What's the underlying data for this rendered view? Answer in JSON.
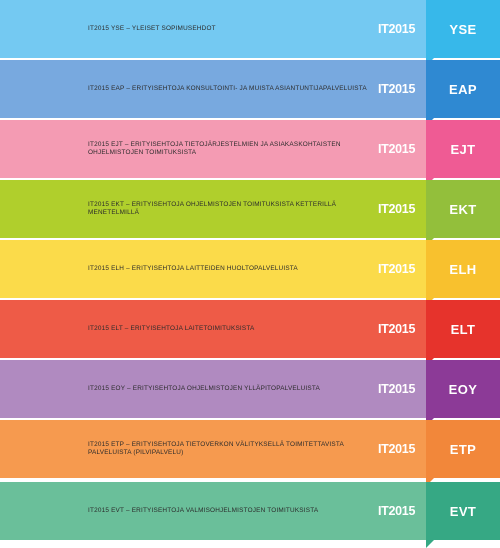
{
  "brand": "IT2015",
  "bands": [
    {
      "code": "YSE",
      "text": "IT2015 YSE – YLEISET SOPIMUSEHDOT",
      "color": "#74c9f2",
      "accent": "#37b8ea"
    },
    {
      "code": "EAP",
      "text": "IT2015 EAP – ERITYISEHTOJA KONSULTOINTI- JA MUISTA ASIANTUNTIJAPALVELUISTA",
      "color": "#78a9df",
      "accent": "#2f89d2"
    },
    {
      "code": "EJT",
      "text": "IT2015 EJT – ERITYISEHTOJA TIETOJÄRJESTELMIEN JA ASIAKASKOHTAISTEN OHJELMISTOJEN TOIMITUKSISTA",
      "color": "#f49bb3",
      "accent": "#ef5b94"
    },
    {
      "code": "EKT",
      "text": "IT2015 EKT – ERITYISEHTOJA OHJELMISTOJEN TOIMITUKSISTA KETTERILLÄ MENETELMILLÄ",
      "color": "#b0cf2c",
      "accent": "#93bf3b"
    },
    {
      "code": "ELH",
      "text": "IT2015 ELH – ERITYISEHTOJA LAITTEIDEN HUOLTOPALVELUISTA",
      "color": "#fbdb4a",
      "accent": "#f8c12e"
    },
    {
      "code": "ELT",
      "text": "IT2015 ELT – ERITYISEHTOJA LAITETOIMITUKSISTA",
      "color": "#ee5b47",
      "accent": "#e6332c"
    },
    {
      "code": "EOY",
      "text": "IT2015 EOY – ERITYISEHTOJA OHJELMISTOJEN YLLÄPITOPALVELUISTA",
      "color": "#b08ac0",
      "accent": "#8c3a97"
    },
    {
      "code": "ETP",
      "text": "IT2015 ETP – ERITYISEHTOJA TIETOVERKON VÄLITYKSELLÄ TOIMITETTAVISTA PALVELUISTA (PILVIPALVELU)",
      "color": "#f69a4f",
      "accent": "#f2873a"
    },
    {
      "code": "EVT",
      "text": "IT2015 EVT – ERITYISEHTOJA VALMISOHJELMISTOJEN TOIMITUKSISTA",
      "color": "#6abf9a",
      "accent": "#36a884"
    }
  ]
}
